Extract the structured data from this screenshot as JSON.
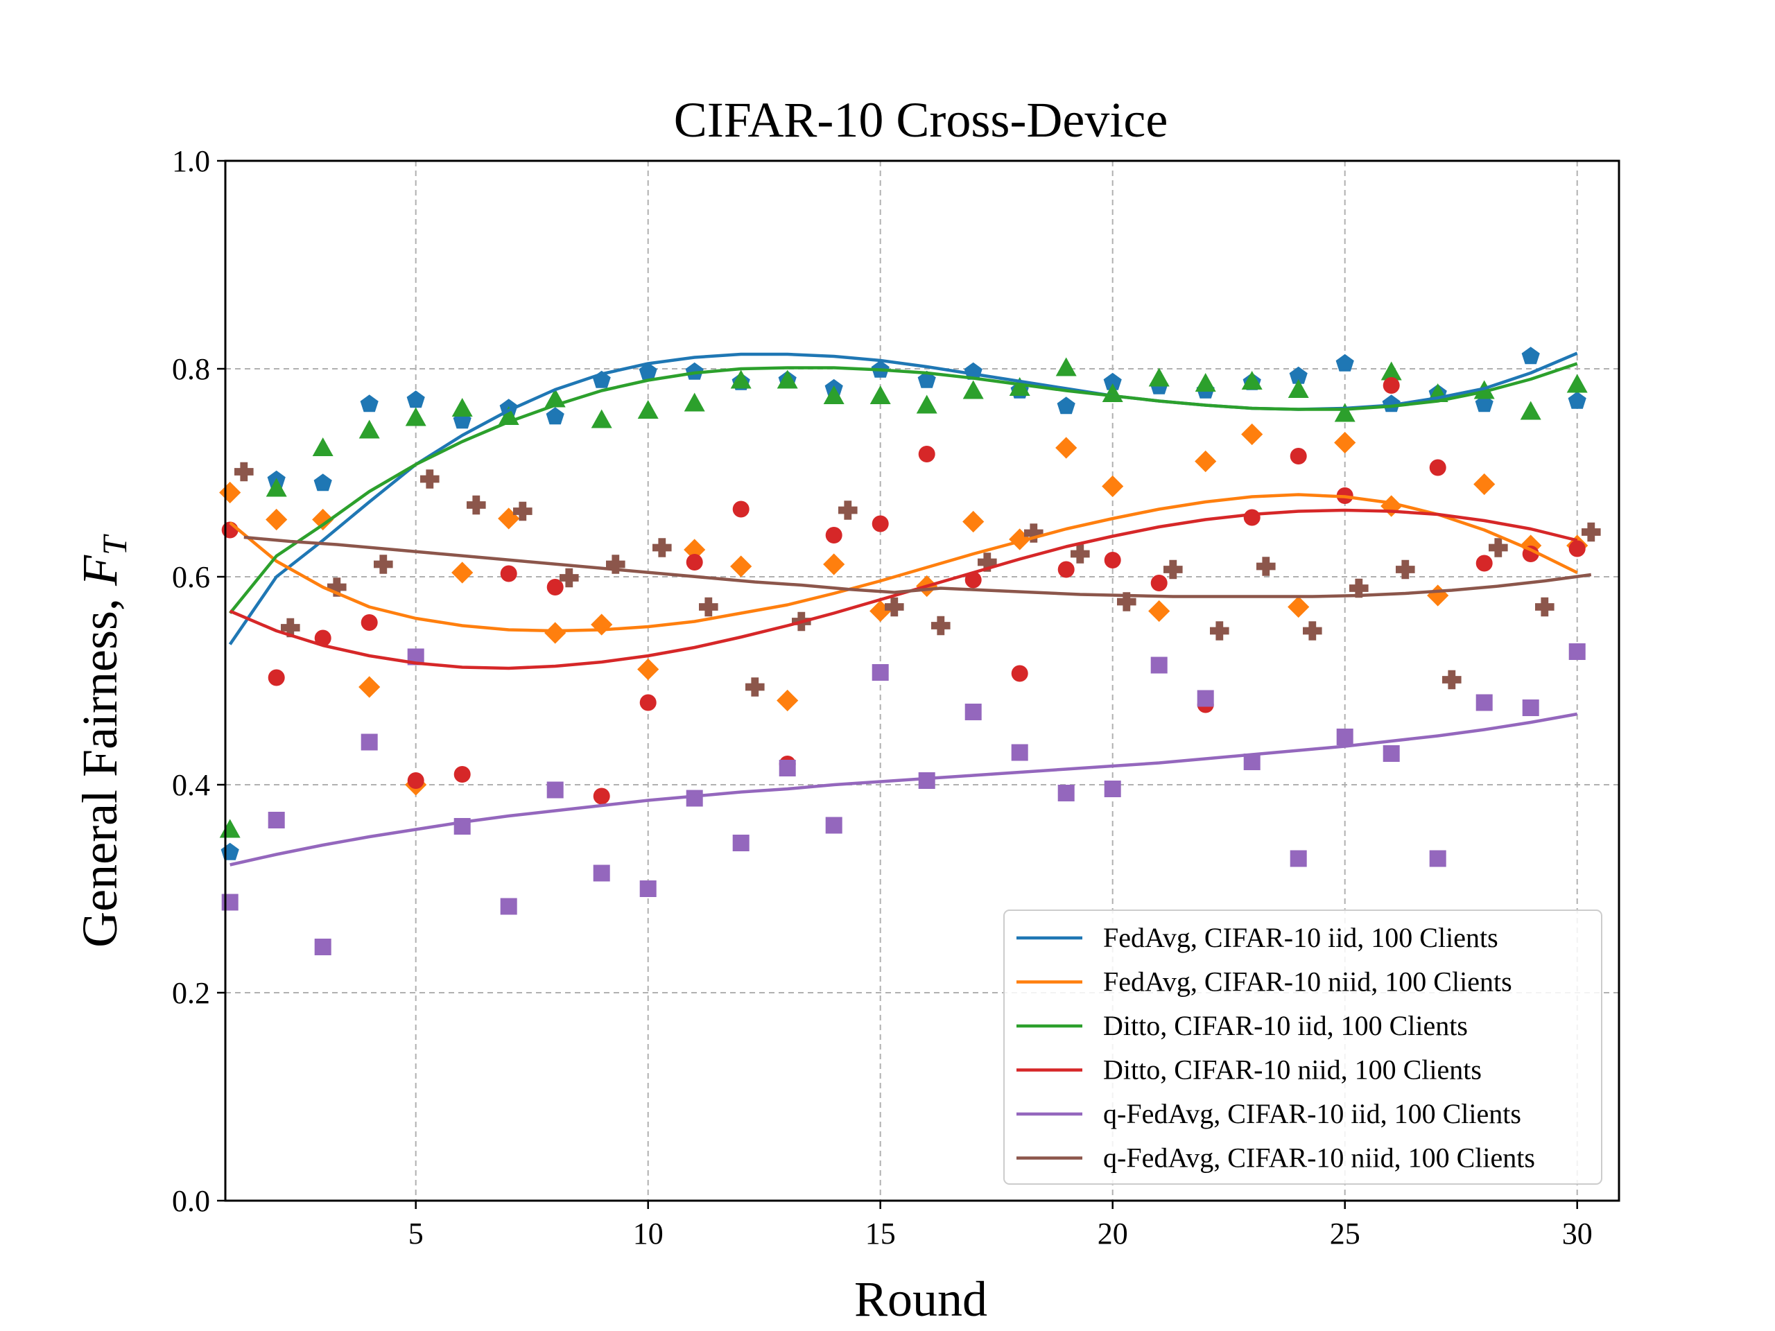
{
  "chart_data": {
    "type": "scatter",
    "title": "CIFAR-10 Cross-Device",
    "xlabel": "Round",
    "ylabel_main": "General Fairness, ",
    "ylabel_symbol": "F",
    "ylabel_sub": "T",
    "xlim": [
      0.9,
      30.9
    ],
    "ylim": [
      0.0,
      1.0
    ],
    "xticks": [
      5,
      10,
      15,
      20,
      25,
      30
    ],
    "yticks": [
      0.0,
      0.2,
      0.4,
      0.6,
      0.8,
      1.0
    ],
    "ytick_labels": [
      "0.0",
      "0.2",
      "0.4",
      "0.6",
      "0.8",
      "1.0"
    ],
    "grid": true,
    "legend_position": "lower-right",
    "series": [
      {
        "name": "FedAvg, CIFAR-10 iid, 100 Clients",
        "color": "#1f77b4",
        "marker": "pentagon",
        "x": [
          1,
          2,
          3,
          4,
          5,
          6,
          7,
          8,
          9,
          10,
          11,
          12,
          13,
          14,
          15,
          16,
          17,
          18,
          19,
          20,
          21,
          22,
          23,
          24,
          25,
          26,
          27,
          28,
          29,
          30
        ],
        "y": [
          0.335,
          0.693,
          0.69,
          0.766,
          0.77,
          0.75,
          0.762,
          0.754,
          0.789,
          0.797,
          0.797,
          0.787,
          0.789,
          0.781,
          0.799,
          0.789,
          0.797,
          0.779,
          0.764,
          0.787,
          0.783,
          0.779,
          0.787,
          0.793,
          0.805,
          0.766,
          0.776,
          0.766,
          0.812,
          0.769
        ],
        "fit_x": [
          1,
          2,
          3,
          4,
          5,
          6,
          7,
          8,
          9,
          10,
          11,
          12,
          13,
          14,
          15,
          16,
          17,
          18,
          19,
          20,
          21,
          22,
          23,
          24,
          25,
          26,
          27,
          28,
          29,
          30
        ],
        "fit_y": [
          0.535,
          0.6,
          0.635,
          0.672,
          0.708,
          0.736,
          0.76,
          0.78,
          0.795,
          0.805,
          0.811,
          0.814,
          0.814,
          0.812,
          0.808,
          0.802,
          0.795,
          0.788,
          0.781,
          0.774,
          0.769,
          0.765,
          0.762,
          0.761,
          0.762,
          0.765,
          0.772,
          0.781,
          0.796,
          0.815
        ]
      },
      {
        "name": "FedAvg, CIFAR-10 niid, 100 Clients",
        "color": "#ff7f0e",
        "marker": "diamond",
        "x": [
          1,
          2,
          3,
          4,
          5,
          6,
          7,
          8,
          9,
          10,
          11,
          12,
          13,
          14,
          15,
          16,
          17,
          18,
          19,
          20,
          21,
          22,
          23,
          24,
          25,
          26,
          27,
          28,
          29,
          30
        ],
        "y": [
          0.681,
          0.655,
          0.655,
          0.494,
          0.4,
          0.604,
          0.656,
          0.546,
          0.554,
          0.511,
          0.626,
          0.61,
          0.481,
          0.612,
          0.567,
          0.591,
          0.653,
          0.636,
          0.724,
          0.687,
          0.567,
          0.711,
          0.737,
          0.571,
          0.729,
          0.668,
          0.582,
          0.689,
          0.63,
          0.63
        ],
        "fit_x": [
          1,
          2,
          3,
          4,
          5,
          6,
          7,
          8,
          9,
          10,
          11,
          12,
          13,
          14,
          15,
          16,
          17,
          18,
          19,
          20,
          21,
          22,
          23,
          24,
          25,
          26,
          27,
          28,
          29,
          30
        ],
        "fit_y": [
          0.652,
          0.615,
          0.59,
          0.571,
          0.56,
          0.553,
          0.549,
          0.548,
          0.549,
          0.552,
          0.557,
          0.565,
          0.573,
          0.584,
          0.596,
          0.609,
          0.622,
          0.634,
          0.646,
          0.656,
          0.665,
          0.672,
          0.677,
          0.679,
          0.677,
          0.671,
          0.66,
          0.645,
          0.626,
          0.604
        ]
      },
      {
        "name": "Ditto, CIFAR-10 iid, 100 Clients",
        "color": "#2ca02c",
        "marker": "triangle",
        "x": [
          1,
          2,
          3,
          4,
          5,
          6,
          7,
          8,
          9,
          10,
          11,
          12,
          13,
          14,
          15,
          16,
          17,
          18,
          19,
          20,
          21,
          22,
          23,
          24,
          25,
          26,
          27,
          28,
          29,
          30
        ],
        "y": [
          0.357,
          0.685,
          0.724,
          0.741,
          0.753,
          0.762,
          0.754,
          0.771,
          0.751,
          0.76,
          0.767,
          0.789,
          0.789,
          0.774,
          0.774,
          0.765,
          0.779,
          0.782,
          0.801,
          0.776,
          0.791,
          0.786,
          0.788,
          0.78,
          0.757,
          0.797,
          0.776,
          0.779,
          0.759,
          0.785
        ],
        "fit_x": [
          1,
          2,
          3,
          4,
          5,
          6,
          7,
          8,
          9,
          10,
          11,
          12,
          13,
          14,
          15,
          16,
          17,
          18,
          19,
          20,
          21,
          22,
          23,
          24,
          25,
          26,
          27,
          28,
          29,
          30
        ],
        "fit_y": [
          0.565,
          0.62,
          0.65,
          0.682,
          0.708,
          0.73,
          0.749,
          0.765,
          0.779,
          0.789,
          0.796,
          0.8,
          0.801,
          0.801,
          0.799,
          0.796,
          0.791,
          0.785,
          0.779,
          0.774,
          0.769,
          0.765,
          0.762,
          0.761,
          0.761,
          0.764,
          0.769,
          0.778,
          0.79,
          0.805
        ]
      },
      {
        "name": "Ditto, CIFAR-10 niid, 100 Clients",
        "color": "#d62728",
        "marker": "circle",
        "x": [
          1,
          2,
          3,
          4,
          5,
          6,
          7,
          8,
          9,
          10,
          11,
          12,
          13,
          14,
          15,
          16,
          17,
          18,
          19,
          20,
          21,
          22,
          23,
          24,
          25,
          26,
          27,
          28,
          29,
          30
        ],
        "y": [
          0.645,
          0.503,
          0.541,
          0.556,
          0.404,
          0.41,
          0.603,
          0.59,
          0.389,
          0.479,
          0.614,
          0.665,
          0.42,
          0.64,
          0.651,
          0.718,
          0.597,
          0.507,
          0.607,
          0.616,
          0.594,
          0.477,
          0.657,
          0.716,
          0.678,
          0.784,
          0.705,
          0.613,
          0.622,
          0.627
        ],
        "fit_x": [
          1,
          2,
          3,
          4,
          5,
          6,
          7,
          8,
          9,
          10,
          11,
          12,
          13,
          14,
          15,
          16,
          17,
          18,
          19,
          20,
          21,
          22,
          23,
          24,
          25,
          26,
          27,
          28,
          29,
          30
        ],
        "fit_y": [
          0.567,
          0.548,
          0.534,
          0.524,
          0.517,
          0.513,
          0.512,
          0.514,
          0.518,
          0.524,
          0.532,
          0.542,
          0.553,
          0.565,
          0.578,
          0.591,
          0.604,
          0.617,
          0.629,
          0.639,
          0.648,
          0.655,
          0.66,
          0.663,
          0.664,
          0.663,
          0.66,
          0.654,
          0.646,
          0.635
        ]
      },
      {
        "name": "q-FedAvg, CIFAR-10 iid, 100 Clients",
        "color": "#9467bd",
        "marker": "square",
        "x": [
          1,
          2,
          3,
          4,
          5,
          6,
          7,
          8,
          9,
          10,
          11,
          12,
          13,
          14,
          15,
          16,
          17,
          18,
          19,
          20,
          21,
          22,
          23,
          24,
          25,
          26,
          27,
          28,
          29,
          30
        ],
        "y": [
          0.287,
          0.366,
          0.244,
          0.441,
          0.523,
          0.36,
          0.283,
          0.395,
          0.315,
          0.3,
          0.387,
          0.344,
          0.416,
          0.361,
          0.508,
          0.404,
          0.47,
          0.431,
          0.392,
          0.396,
          0.515,
          0.483,
          0.422,
          0.329,
          0.446,
          0.43,
          0.329,
          0.479,
          0.474,
          0.528
        ],
        "fit_x": [
          1,
          2,
          3,
          4,
          5,
          6,
          7,
          8,
          9,
          10,
          11,
          12,
          13,
          14,
          15,
          16,
          17,
          18,
          19,
          20,
          21,
          22,
          23,
          24,
          25,
          26,
          27,
          28,
          29,
          30
        ],
        "fit_y": [
          0.323,
          0.333,
          0.342,
          0.35,
          0.357,
          0.364,
          0.37,
          0.375,
          0.38,
          0.385,
          0.389,
          0.393,
          0.396,
          0.4,
          0.403,
          0.406,
          0.409,
          0.412,
          0.415,
          0.418,
          0.421,
          0.425,
          0.429,
          0.433,
          0.437,
          0.442,
          0.447,
          0.453,
          0.46,
          0.468
        ]
      },
      {
        "name": "q-FedAvg, CIFAR-10 niid, 100 Clients",
        "color": "#8c564b",
        "marker": "plus",
        "x": [
          1.3,
          2.3,
          3.3,
          4.3,
          5.3,
          6.3,
          7.3,
          8.3,
          9.3,
          10.3,
          11.3,
          12.3,
          13.3,
          14.3,
          15.3,
          16.3,
          17.3,
          18.3,
          19.3,
          20.3,
          21.3,
          22.3,
          23.3,
          24.3,
          25.3,
          26.3,
          27.3,
          28.3,
          29.3,
          30.3
        ],
        "y": [
          0.701,
          0.551,
          0.59,
          0.612,
          0.694,
          0.669,
          0.663,
          0.599,
          0.612,
          0.628,
          0.571,
          0.494,
          0.557,
          0.664,
          0.571,
          0.553,
          0.614,
          0.642,
          0.622,
          0.576,
          0.607,
          0.548,
          0.61,
          0.548,
          0.589,
          0.607,
          0.501,
          0.628,
          0.571,
          0.643
        ],
        "fit_x": [
          1.3,
          2.3,
          3.3,
          4.3,
          5.3,
          6.3,
          7.3,
          8.3,
          9.3,
          10.3,
          11.3,
          12.3,
          13.3,
          14.3,
          15.3,
          16.3,
          17.3,
          18.3,
          19.3,
          20.3,
          21.3,
          22.3,
          23.3,
          24.3,
          25.3,
          26.3,
          27.3,
          28.3,
          29.3,
          30.3
        ],
        "fit_y": [
          0.638,
          0.634,
          0.631,
          0.627,
          0.623,
          0.619,
          0.615,
          0.611,
          0.607,
          0.603,
          0.599,
          0.595,
          0.592,
          0.588,
          0.585,
          0.589,
          0.587,
          0.585,
          0.583,
          0.582,
          0.581,
          0.581,
          0.581,
          0.581,
          0.582,
          0.584,
          0.587,
          0.591,
          0.596,
          0.602
        ]
      }
    ]
  }
}
